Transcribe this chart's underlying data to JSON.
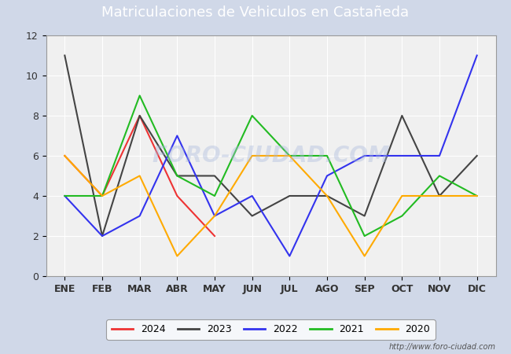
{
  "title": "Matriculaciones de Vehiculos en Castañeda",
  "months": [
    "ENE",
    "FEB",
    "MAR",
    "ABR",
    "MAY",
    "JUN",
    "JUL",
    "AGO",
    "SEP",
    "OCT",
    "NOV",
    "DIC"
  ],
  "series": {
    "2024": [
      6,
      4,
      8,
      4,
      2,
      null,
      null,
      null,
      null,
      null,
      null,
      null
    ],
    "2023": [
      11,
      2,
      8,
      5,
      5,
      3,
      4,
      4,
      3,
      8,
      4,
      6
    ],
    "2022": [
      4,
      2,
      3,
      7,
      3,
      4,
      1,
      5,
      6,
      6,
      6,
      11
    ],
    "2021": [
      4,
      4,
      9,
      5,
      4,
      8,
      6,
      6,
      2,
      3,
      5,
      4
    ],
    "2020": [
      6,
      4,
      5,
      1,
      3,
      6,
      6,
      4,
      1,
      4,
      4,
      4
    ]
  },
  "colors": {
    "2024": "#ee3333",
    "2023": "#444444",
    "2022": "#3333ee",
    "2021": "#22bb22",
    "2020": "#ffaa00"
  },
  "ylim": [
    0,
    12
  ],
  "yticks": [
    0,
    2,
    4,
    6,
    8,
    10,
    12
  ],
  "fig_bg_color": "#d0d8e8",
  "plot_bg_color": "#f0f0f0",
  "title_bg_color": "#5588cc",
  "title_text_color": "#ffffff",
  "title_fontsize": 13,
  "grid_color": "#ffffff",
  "tick_fontsize": 9,
  "tick_color": "#333333",
  "watermark_text": "FORO-CIUDAD.COM",
  "watermark_color": "#aabbdd",
  "watermark_alpha": 0.4,
  "url_text": "http://www.foro-ciudad.com",
  "url_color": "#555555",
  "url_fontsize": 7,
  "legend_years": [
    "2024",
    "2023",
    "2022",
    "2021",
    "2020"
  ],
  "line_width": 1.5
}
